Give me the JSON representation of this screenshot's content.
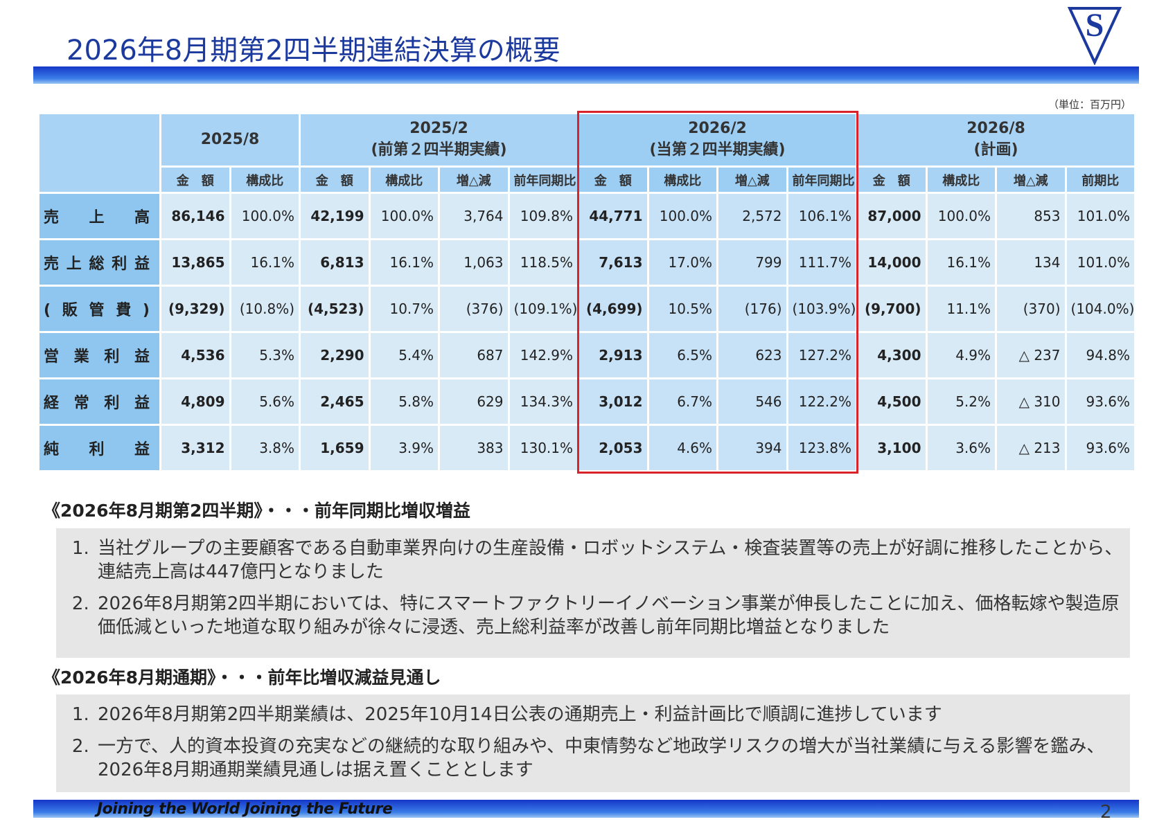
{
  "header": {
    "title": "2026年8月期第2四半期連結決算の概要",
    "logo": "S",
    "unit": "（単位：百万円）"
  },
  "table": {
    "groups": [
      {
        "period": "2025/8"
      },
      {
        "period": "2025/2",
        "note": "(前第２四半期実績)"
      },
      {
        "period": "2026/2",
        "note": "(当第２四半期実績)"
      },
      {
        "period": "2026/8",
        "note": "(計画)"
      }
    ],
    "subheaders": [
      "金　額",
      "構成比",
      "金　額",
      "構成比",
      "増△減",
      "前年同期比",
      "金　額",
      "構成比",
      "増△減",
      "前年同期比",
      "金　額",
      "構成比",
      "増△減",
      "前期比"
    ],
    "rows": [
      {
        "label": "売上高",
        "cells": [
          "86,146",
          "100.0%",
          "42,199",
          "100.0%",
          "3,764",
          "109.8%",
          "44,771",
          "100.0%",
          "2,572",
          "106.1%",
          "87,000",
          "100.0%",
          "853",
          "101.0%"
        ]
      },
      {
        "label": "売上総利益",
        "cells": [
          "13,865",
          "16.1%",
          "6,813",
          "16.1%",
          "1,063",
          "118.5%",
          "7,613",
          "17.0%",
          "799",
          "111.7%",
          "14,000",
          "16.1%",
          "134",
          "101.0%"
        ]
      },
      {
        "label": "(販管費)",
        "cells": [
          "(9,329)",
          "(10.8%)",
          "(4,523)",
          "10.7%",
          "(376)",
          "(109.1%)",
          "(4,699)",
          "10.5%",
          "(176)",
          "(103.9%)",
          "(9,700)",
          "11.1%",
          "(370)",
          "(104.0%)"
        ]
      },
      {
        "label": "営業利益",
        "cells": [
          "4,536",
          "5.3%",
          "2,290",
          "5.4%",
          "687",
          "142.9%",
          "2,913",
          "6.5%",
          "623",
          "127.2%",
          "4,300",
          "4.9%",
          "△ 237",
          "94.8%"
        ]
      },
      {
        "label": "経常利益",
        "cells": [
          "4,809",
          "5.6%",
          "2,465",
          "5.8%",
          "629",
          "134.3%",
          "3,012",
          "6.7%",
          "546",
          "122.2%",
          "4,500",
          "5.2%",
          "△ 310",
          "93.6%"
        ]
      },
      {
        "label": "純利益",
        "cells": [
          "3,312",
          "3.8%",
          "1,659",
          "3.9%",
          "383",
          "130.1%",
          "2,053",
          "4.6%",
          "394",
          "123.8%",
          "3,100",
          "3.6%",
          "△ 213",
          "93.6%"
        ]
      }
    ]
  },
  "sections": [
    {
      "heading": "《2026年8月期第2四半期》・・・前年同期比増収増益",
      "items": [
        "当社グループの主要顧客である自動車業界向けの生産設備・ロボットシステム・検査装置等の売上が好調に推移したことから、連結売上高は447億円となりました",
        "2026年8月期第2四半期においては、特にスマートファクトリーイノベーション事業が伸長したことに加え、価格転嫁や製造原価低減といった地道な取り組みが徐々に浸透、売上総利益率が改善し前年同期比増益となりました"
      ]
    },
    {
      "heading": "《2026年8月期通期》・・・前年比増収減益見通し",
      "items": [
        "2026年8月期第2四半期業績は、2025年10月14日公表の通期売上・利益計画比で順調に進捗しています",
        "一方で、人的資本投資の充実などの継続的な取り組みや、中東情勢など地政学リスクの増大が当社業績に与える影響を鑑み、2026年8月期通期業績見通しは据え置くこととします"
      ]
    }
  ],
  "footer": {
    "slogan": "Joining the World  Joining the Future",
    "page": "2"
  }
}
